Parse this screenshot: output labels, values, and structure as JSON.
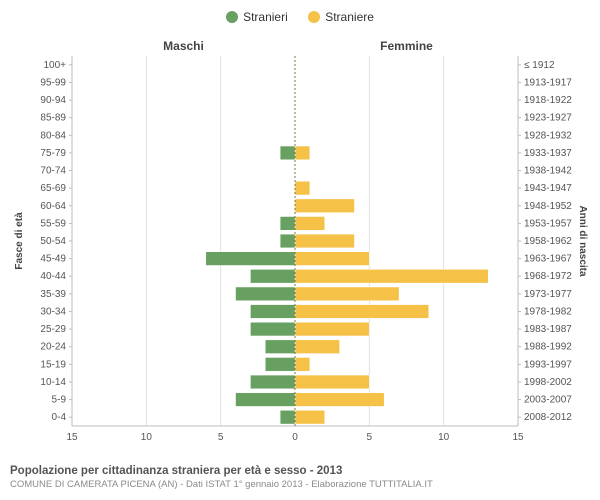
{
  "legend": {
    "male_series": "Stranieri",
    "female_series": "Straniere",
    "male_color": "#68a061",
    "female_color": "#f5c147"
  },
  "headers": {
    "left": "Maschi",
    "right": "Femmine"
  },
  "axis_labels": {
    "left": "Fasce di età",
    "right": "Anni di nascita"
  },
  "chart": {
    "type": "population-pyramid",
    "xlim": 15,
    "xtick_step": 5,
    "background_color": "#ffffff",
    "grid_color": "#e0e0e0",
    "tick_fontsize": 10,
    "rows": [
      {
        "age": "0-4",
        "birth": "2008-2012",
        "m": 1,
        "f": 2
      },
      {
        "age": "5-9",
        "birth": "2003-2007",
        "m": 4,
        "f": 6
      },
      {
        "age": "10-14",
        "birth": "1998-2002",
        "m": 3,
        "f": 5
      },
      {
        "age": "15-19",
        "birth": "1993-1997",
        "m": 2,
        "f": 1
      },
      {
        "age": "20-24",
        "birth": "1988-1992",
        "m": 2,
        "f": 3
      },
      {
        "age": "25-29",
        "birth": "1983-1987",
        "m": 3,
        "f": 5
      },
      {
        "age": "30-34",
        "birth": "1978-1982",
        "m": 3,
        "f": 9
      },
      {
        "age": "35-39",
        "birth": "1973-1977",
        "m": 4,
        "f": 7
      },
      {
        "age": "40-44",
        "birth": "1968-1972",
        "m": 3,
        "f": 13
      },
      {
        "age": "45-49",
        "birth": "1963-1967",
        "m": 6,
        "f": 5
      },
      {
        "age": "50-54",
        "birth": "1958-1962",
        "m": 1,
        "f": 4
      },
      {
        "age": "55-59",
        "birth": "1953-1957",
        "m": 1,
        "f": 2
      },
      {
        "age": "60-64",
        "birth": "1948-1952",
        "m": 0,
        "f": 4
      },
      {
        "age": "65-69",
        "birth": "1943-1947",
        "m": 0,
        "f": 1
      },
      {
        "age": "70-74",
        "birth": "1938-1942",
        "m": 0,
        "f": 0
      },
      {
        "age": "75-79",
        "birth": "1933-1937",
        "m": 1,
        "f": 1
      },
      {
        "age": "80-84",
        "birth": "1928-1932",
        "m": 0,
        "f": 0
      },
      {
        "age": "85-89",
        "birth": "1923-1927",
        "m": 0,
        "f": 0
      },
      {
        "age": "90-94",
        "birth": "1918-1922",
        "m": 0,
        "f": 0
      },
      {
        "age": "95-99",
        "birth": "1913-1917",
        "m": 0,
        "f": 0
      },
      {
        "age": "100+",
        "birth": "≤ 1912",
        "m": 0,
        "f": 0
      }
    ]
  },
  "footer": {
    "title": "Popolazione per cittadinanza straniera per età e sesso - 2013",
    "subtitle": "COMUNE DI CAMERATA PICENA (AN) - Dati ISTAT 1° gennaio 2013 - Elaborazione TUTTITALIA.IT"
  }
}
